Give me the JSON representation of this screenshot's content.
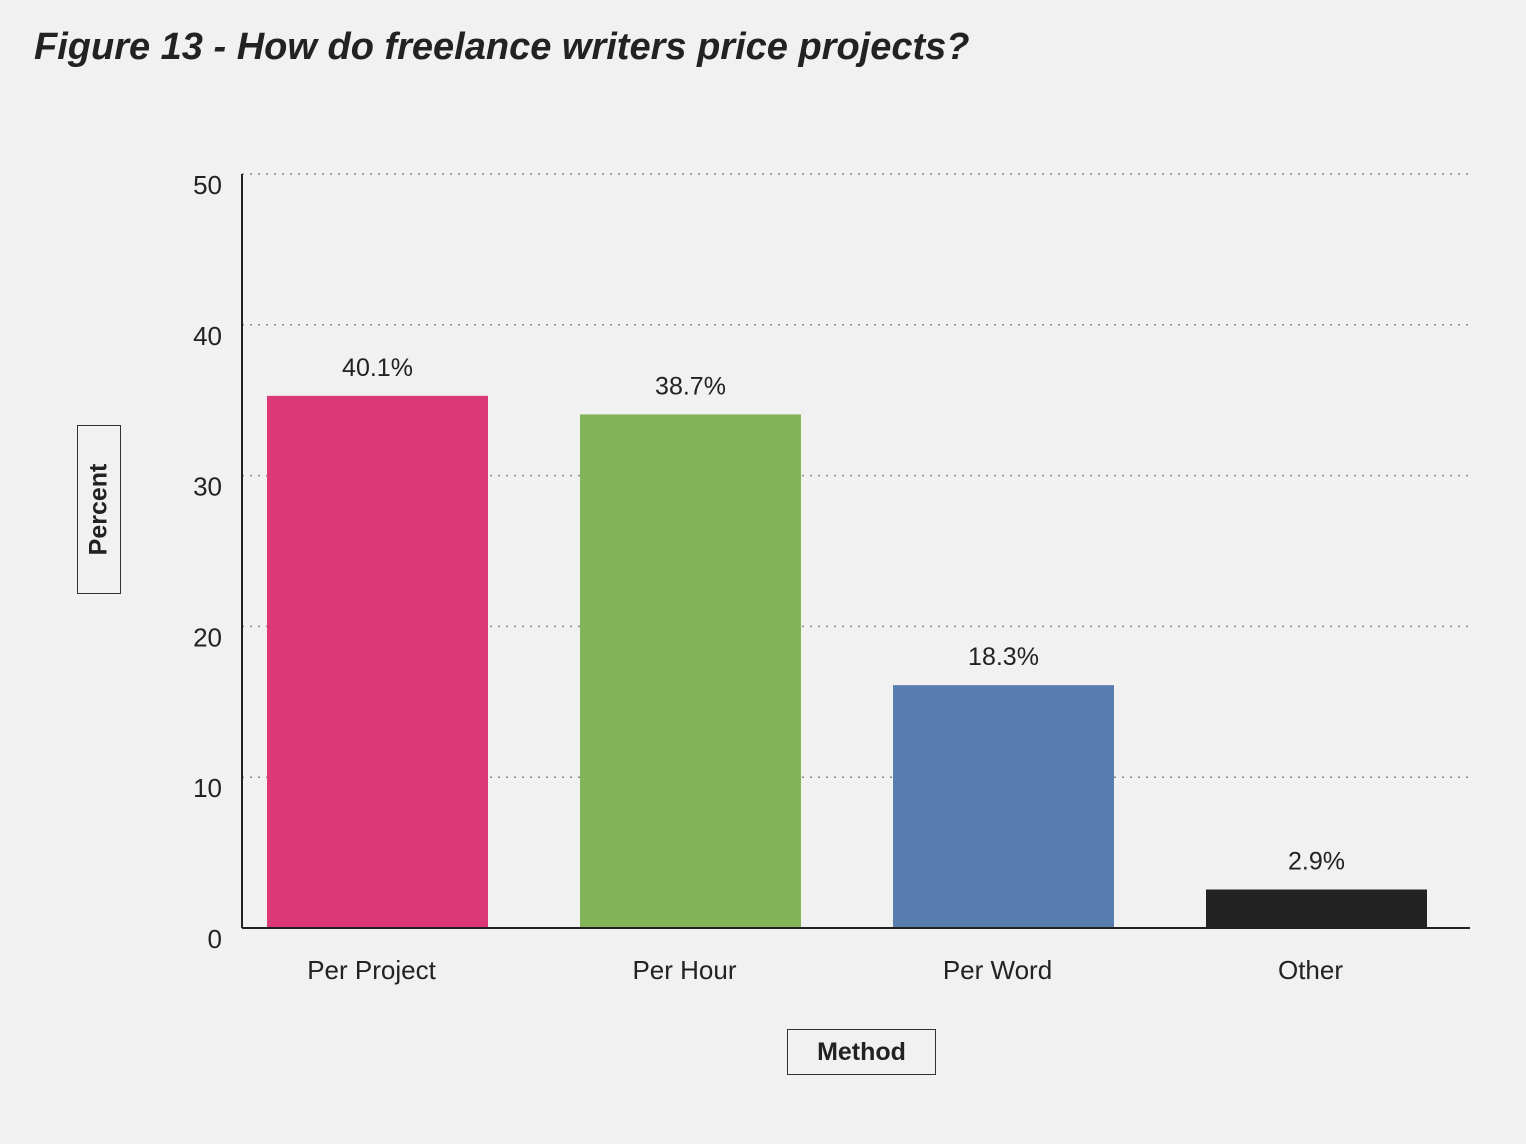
{
  "chart_data": {
    "type": "bar",
    "title": "Figure 13 - How do freelance writers price projects?",
    "xlabel": "Method",
    "ylabel": "Percent",
    "categories": [
      "Per Project",
      "Per Hour",
      "Per Word",
      "Other"
    ],
    "values": [
      40.1,
      38.7,
      18.3,
      2.9
    ],
    "data_labels": [
      "40.1%",
      "38.7%",
      "18.3%",
      "2.9%"
    ],
    "colors": [
      "#dc3878",
      "#83b457",
      "#587eb0",
      "#222222"
    ],
    "ylim": [
      0,
      50
    ],
    "yticks": [
      0,
      10,
      20,
      30,
      40,
      50
    ],
    "grid": "dotted horizontal",
    "legend": "none"
  }
}
